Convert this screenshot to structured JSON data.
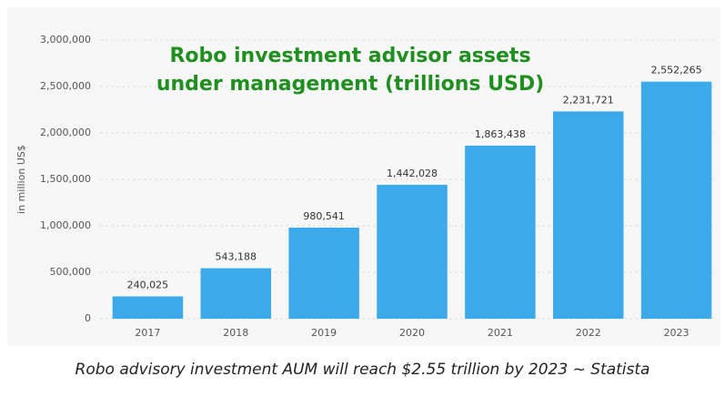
{
  "chart_data": {
    "type": "bar",
    "title": "Robo investment advisor assets under management (trillions USD)",
    "y_label": "in million US$",
    "caption": "Robo advisory investment AUM will reach $2.55 trillion by 2023 ~ Statista",
    "categories": [
      "2017",
      "2018",
      "2019",
      "2020",
      "2021",
      "2022",
      "2023"
    ],
    "values": [
      240025,
      543188,
      980541,
      1442028,
      1863438,
      2231721,
      2552265
    ],
    "value_labels": [
      "240,025",
      "543,188",
      "980,541",
      "1,442,028",
      "1,863,438",
      "2,231,721",
      "2,552,265"
    ],
    "color": "#3ba9ea",
    "ylim": [
      0,
      3000000
    ],
    "yticks": [
      0,
      {
        "value": 500000,
        "label": "500,000"
      },
      {
        "value": 1000000,
        "label": "1,000,000"
      },
      {
        "value": 1500000,
        "label": "1,500,000"
      },
      {
        "value": 2000000,
        "label": "2,000,000"
      },
      {
        "value": 2500000,
        "label": "2,500,000"
      },
      {
        "value": 3000000,
        "label": "3,000,000"
      }
    ],
    "grid": true
  }
}
